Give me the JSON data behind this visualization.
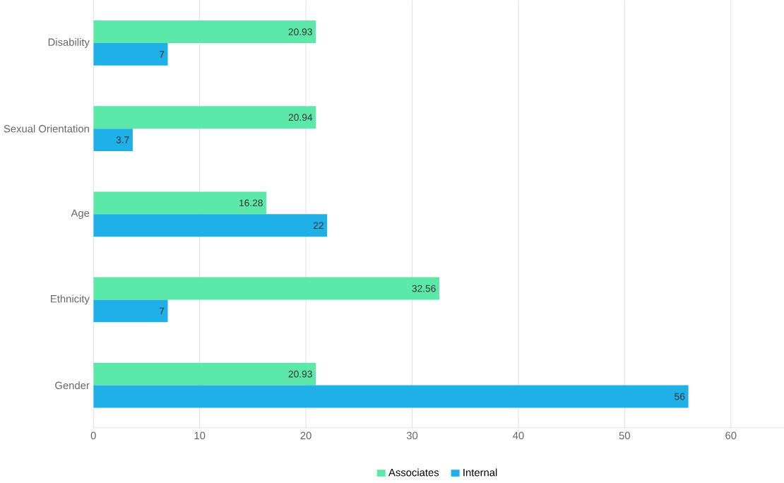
{
  "chart_data": {
    "type": "bar",
    "orientation": "horizontal",
    "categories": [
      "Disability",
      "Sexual Orientation",
      "Age",
      "Ethnicity",
      "Gender"
    ],
    "series": [
      {
        "name": "Associates",
        "color": "#5ce8a8",
        "values": [
          20.93,
          20.94,
          16.28,
          32.56,
          20.93
        ]
      },
      {
        "name": "Internal",
        "color": "#1eb0e6",
        "values": [
          7,
          3.7,
          22,
          7,
          56
        ]
      }
    ],
    "xlim": [
      0,
      65
    ],
    "xticks": [
      0,
      10,
      20,
      30,
      40,
      50,
      60
    ],
    "grid": "x",
    "legend": "bottom",
    "data_labels": true
  }
}
